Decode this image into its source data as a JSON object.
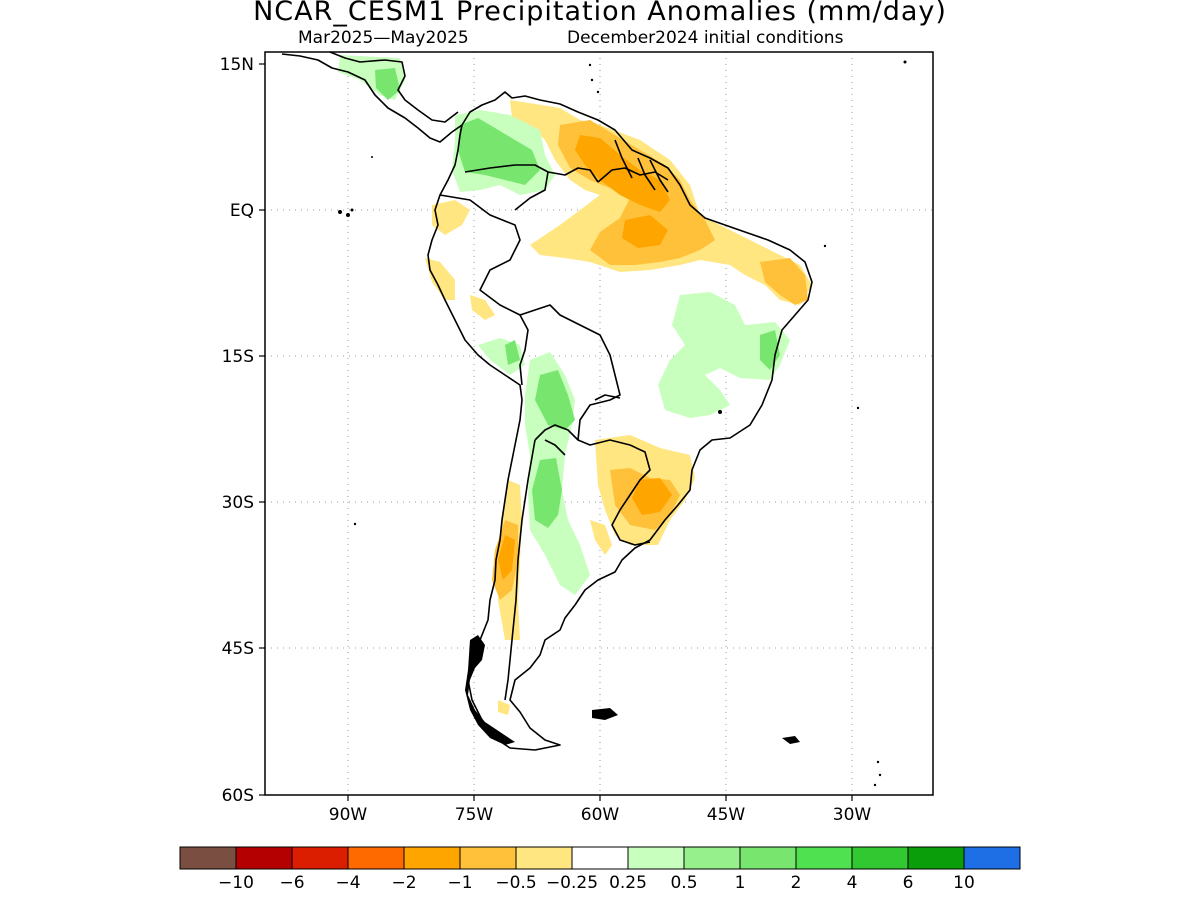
{
  "title": "NCAR_CESM1 Precipitation Anomalies (mm/day)",
  "subtitle_period": "Mar2025—May2025",
  "subtitle_init": "December2024 initial conditions",
  "latitude_labels": [
    "15N",
    "EQ",
    "15S",
    "30S",
    "45S",
    "60S"
  ],
  "longitude_labels": [
    "90W",
    "75W",
    "60W",
    "45W",
    "30W"
  ],
  "colorbar": {
    "colors": [
      "#7a4e40",
      "#b40000",
      "#dc1e00",
      "#ff6a00",
      "#ffa500",
      "#ffc03a",
      "#ffe680",
      "#ffffff",
      "#c8ffbe",
      "#96f08c",
      "#78e66e",
      "#50e150",
      "#32c832",
      "#0a9e0a",
      "#1e6ee6"
    ],
    "labels": [
      "−10",
      "−6",
      "−4",
      "−2",
      "−1",
      "−0.5",
      "−0.25",
      "0.25",
      "0.5",
      "1",
      "2",
      "4",
      "6",
      "10"
    ]
  },
  "colors": {
    "dry_light": "#ffe680",
    "dry_medium": "#ffc03a",
    "dry_strong": "#ffa500",
    "wet_light": "#c8ffbe",
    "wet_medium": "#78e66e",
    "wet_strong": "#50e150"
  }
}
